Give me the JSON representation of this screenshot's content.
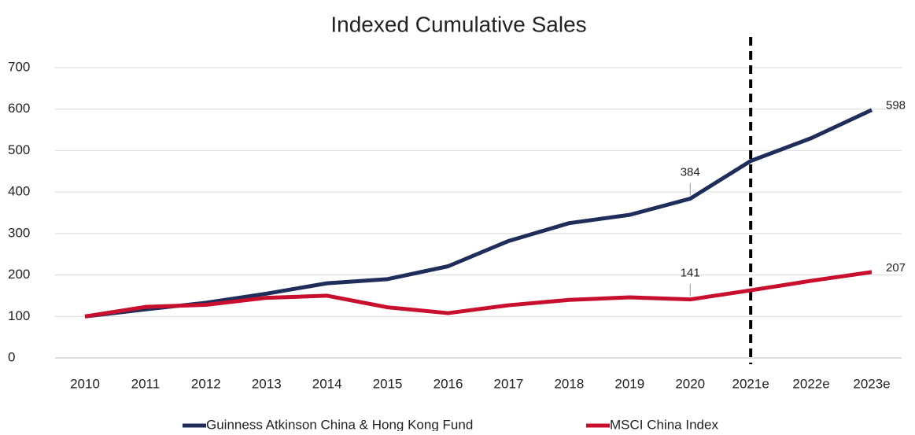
{
  "chart_data": {
    "type": "line",
    "title": "Indexed Cumulative Sales",
    "categories": [
      "2010",
      "2011",
      "2012",
      "2013",
      "2014",
      "2015",
      "2016",
      "2017",
      "2018",
      "2019",
      "2020",
      "2021e",
      "2022e",
      "2023e"
    ],
    "series": [
      {
        "name": "Guinness Atkinson China & Hong Kong Fund",
        "color": "#1f2d5a",
        "values": [
          100,
          117,
          133,
          155,
          180,
          190,
          221,
          282,
          325,
          345,
          384,
          475,
          530,
          598
        ]
      },
      {
        "name": "MSCI China Index",
        "color": "#c8102e",
        "values": [
          100,
          123,
          128,
          145,
          150,
          122,
          108,
          127,
          140,
          146,
          141,
          163,
          186,
          207
        ]
      }
    ],
    "labeled_points": [
      10,
      13
    ],
    "vline_at": "2021e",
    "ylim": [
      0,
      700
    ],
    "yticks": [
      0,
      100,
      200,
      300,
      400,
      500,
      600,
      700
    ],
    "grid": true,
    "legend": "bottom"
  }
}
